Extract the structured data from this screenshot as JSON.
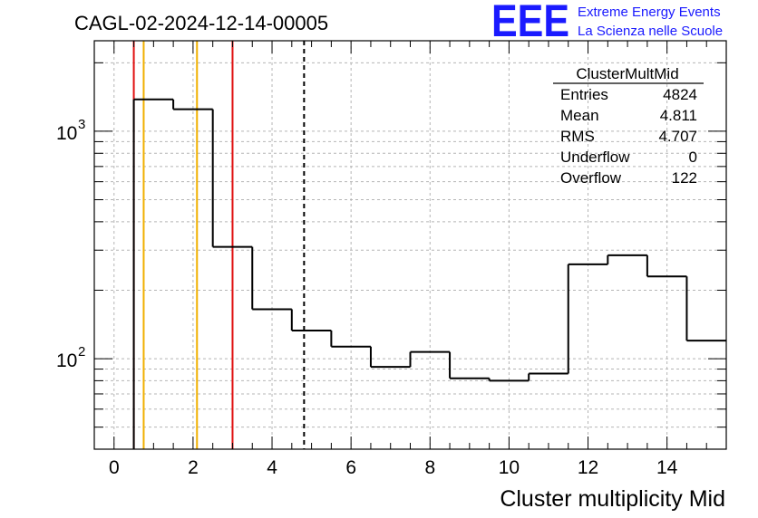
{
  "chart_data": {
    "type": "histogram",
    "title": "CAGL-02-2024-12-14-00005",
    "xlabel": "Cluster multiplicity Mid",
    "ylabel": "",
    "xlim": [
      -0.5,
      15.5
    ],
    "ylim": [
      40,
      2500
    ],
    "yscale": "log",
    "grid": true,
    "x_ticks": [
      "0",
      "2",
      "4",
      "6",
      "8",
      "10",
      "12",
      "14"
    ],
    "y_ticks": [
      {
        "base": "10",
        "exp": "3",
        "value": 1000
      },
      {
        "base": "10",
        "exp": "2",
        "value": 100
      }
    ],
    "bins": {
      "edges": [
        0.5,
        1.5,
        2.5,
        3.5,
        4.5,
        5.5,
        6.5,
        7.5,
        8.5,
        9.5,
        10.5,
        11.5,
        12.5,
        13.5,
        14.5,
        15.5
      ],
      "values": [
        1380,
        1250,
        310,
        165,
        133,
        113,
        92,
        107,
        82,
        80,
        86,
        260,
        285,
        230,
        120
      ]
    },
    "vertical_lines": [
      {
        "x": 0.5,
        "color": "#e01010",
        "style": "solid"
      },
      {
        "x": 0.75,
        "color": "#f0b000",
        "style": "solid"
      },
      {
        "x": 2.1,
        "color": "#f0b000",
        "style": "solid"
      },
      {
        "x": 3.0,
        "color": "#e01010",
        "style": "solid"
      },
      {
        "x": 4.811,
        "color": "#000000",
        "style": "dashed"
      }
    ],
    "stats_box": {
      "name": "ClusterMultMid",
      "rows": [
        {
          "label": "Entries",
          "value": "4824"
        },
        {
          "label": "Mean",
          "value": "4.811"
        },
        {
          "label": "RMS",
          "value": "4.707"
        },
        {
          "label": "Underflow",
          "value": "0"
        },
        {
          "label": "Overflow",
          "value": "122"
        }
      ]
    }
  },
  "logo": {
    "letters": "EEE",
    "line1": "Extreme Energy Events",
    "line2": "La Scienza nelle Scuole",
    "color": "#1a1aff"
  }
}
